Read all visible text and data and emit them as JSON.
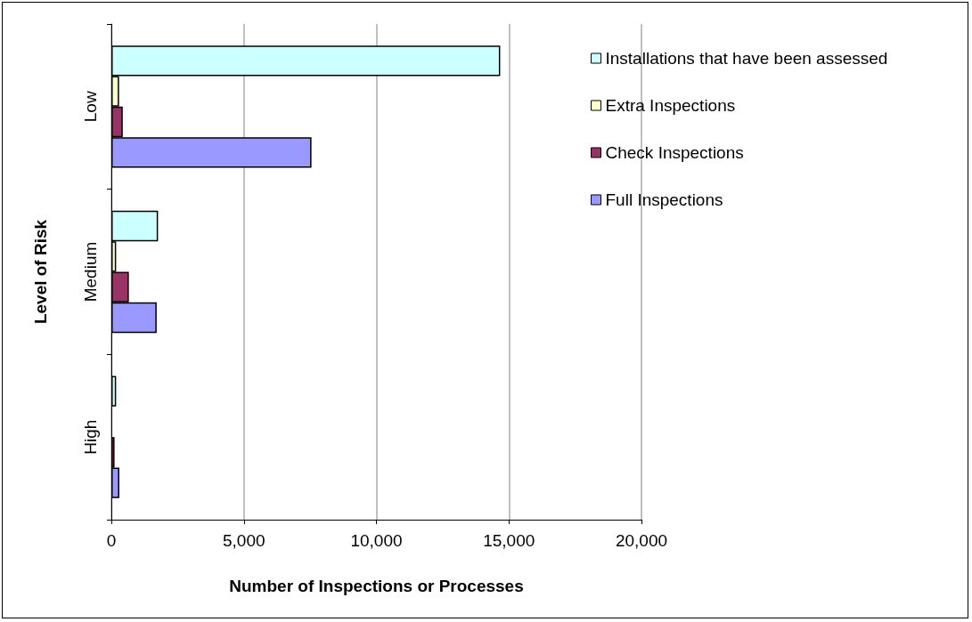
{
  "chart_data": {
    "type": "bar",
    "orientation": "horizontal",
    "xlabel": "Number of Inspections or Processes",
    "ylabel": "Level of Risk",
    "categories": [
      "Low",
      "Medium",
      "High"
    ],
    "series": [
      {
        "name": "Installations that have been assessed",
        "color": "#ccffff",
        "values": [
          14670,
          1760,
          180
        ]
      },
      {
        "name": "Extra Inspections",
        "color": "#ffffcc",
        "values": [
          290,
          180,
          null
        ]
      },
      {
        "name": "Check Inspections",
        "color": "#993366",
        "values": [
          430,
          660,
          120
        ]
      },
      {
        "name": "Full Inspections",
        "color": "#9999ff",
        "values": [
          7550,
          1710,
          300
        ]
      }
    ],
    "xlim": [
      0,
      20000
    ],
    "xticks": [
      0,
      {
        "value": 5000,
        "label": "5,000"
      },
      {
        "value": 10000,
        "label": "10,000"
      },
      {
        "value": 15000,
        "label": "15,000"
      },
      {
        "value": 20000,
        "label": "20,000"
      }
    ],
    "grid": "x",
    "legend": "top right"
  }
}
